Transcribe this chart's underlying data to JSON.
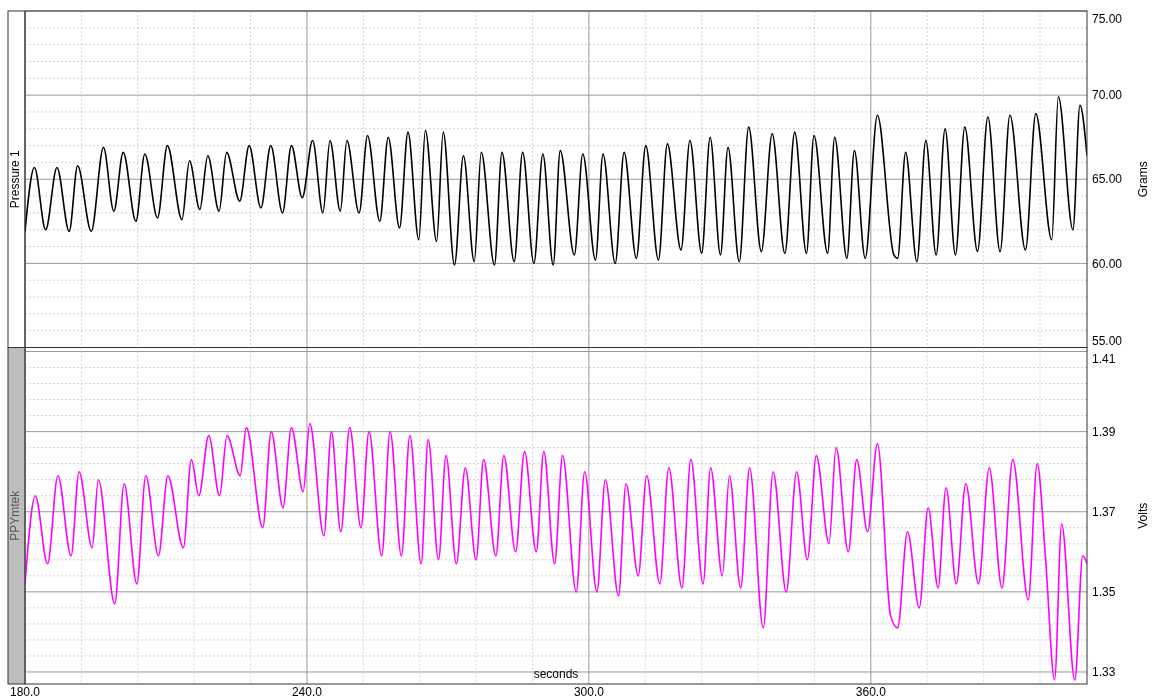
{
  "chart_data": [
    {
      "type": "line",
      "x": [
        180.0,
        182.0,
        184.4,
        186.8,
        189.4,
        191.2,
        194.1,
        196.7,
        198.9,
        200.9,
        203.6,
        205.5,
        208.2,
        210.3,
        213.4,
        215.0,
        217.2,
        218.9,
        221.3,
        222.9,
        225.7,
        227.7,
        230.2,
        232.3,
        234.8,
        236.7,
        239.0,
        241.2,
        243.4,
        244.9,
        247.1,
        248.5,
        251.1,
        252.9,
        255.5,
        257.3,
        259.7,
        261.5,
        263.8,
        265.2,
        267.6,
        269.0,
        271.4,
        273.3,
        275.6,
        277.1,
        279.9,
        281.5,
        284.1,
        285.9,
        288.3,
        290.2,
        292.4,
        293.9,
        296.9,
        298.7,
        301.4,
        303.0,
        305.6,
        307.5,
        310.1,
        312.1,
        314.8,
        316.7,
        319.6,
        321.5,
        324.0,
        325.8,
        328.0,
        329.6,
        332.0,
        334.0,
        336.7,
        339.0,
        341.7,
        343.8,
        346.3,
        347.9,
        350.8,
        352.3,
        354.9,
        356.5,
        358.8,
        361.4,
        364.9,
        365.7,
        367.4,
        369.8,
        371.7,
        373.9,
        375.8,
        378.0,
        380.0,
        382.7,
        384.9,
        387.5,
        389.6,
        392.9,
        395.1,
        398.5,
        399.9,
        403.0,
        404.5,
        406.0
      ],
      "series": [
        {
          "name": "Pressure 1",
          "color": "#000000",
          "values": [
            61.9,
            65.7,
            62.0,
            65.7,
            61.9,
            65.8,
            61.9,
            66.9,
            63.1,
            66.6,
            62.5,
            66.5,
            62.7,
            67.0,
            62.6,
            66.1,
            63.2,
            66.4,
            63.1,
            66.6,
            63.7,
            67.0,
            63.3,
            67.0,
            63.0,
            67.0,
            63.9,
            67.3,
            63.0,
            67.3,
            63.1,
            67.3,
            63.0,
            67.6,
            62.5,
            67.5,
            62.1,
            67.8,
            61.4,
            67.9,
            61.3,
            67.8,
            59.9,
            66.4,
            60.1,
            66.6,
            59.9,
            66.6,
            60.1,
            66.6,
            60.0,
            66.5,
            59.9,
            66.7,
            60.5,
            66.5,
            60.2,
            66.5,
            60.0,
            66.6,
            60.3,
            67.0,
            60.2,
            67.1,
            60.8,
            67.3,
            60.6,
            67.5,
            60.5,
            66.9,
            60.1,
            68.1,
            60.7,
            67.7,
            60.6,
            67.8,
            60.6,
            67.6,
            60.6,
            67.5,
            60.3,
            66.7,
            60.3,
            68.8,
            60.5,
            60.3,
            66.6,
            60.1,
            67.3,
            60.5,
            68.0,
            60.5,
            68.1,
            60.7,
            68.7,
            60.7,
            68.8,
            60.8,
            68.9,
            61.4,
            69.9,
            62.0,
            69.4,
            66.4
          ]
        }
      ],
      "ylabel": "Grams",
      "xlim": [
        180,
        406
      ],
      "xticks": [
        {
          "value": 180,
          "label": null
        },
        {
          "value": 192,
          "label": null
        },
        {
          "value": 204,
          "label": null
        },
        {
          "value": 216,
          "label": null
        },
        {
          "value": 228,
          "label": null
        },
        {
          "value": 240,
          "label": null
        },
        {
          "value": 252,
          "label": null
        },
        {
          "value": 264,
          "label": null
        },
        {
          "value": 276,
          "label": null
        },
        {
          "value": 288,
          "label": null
        },
        {
          "value": 300,
          "label": null
        },
        {
          "value": 312,
          "label": null
        },
        {
          "value": 324,
          "label": null
        },
        {
          "value": 336,
          "label": null
        },
        {
          "value": 348,
          "label": null
        },
        {
          "value": 360,
          "label": null
        },
        {
          "value": 372,
          "label": null
        },
        {
          "value": 384,
          "label": null
        },
        {
          "value": 396,
          "label": null
        }
      ],
      "ylim": [
        55,
        75
      ],
      "yticks": [
        {
          "value": 55,
          "label": "55.00"
        },
        {
          "value": 56,
          "label": null
        },
        {
          "value": 57,
          "label": null
        },
        {
          "value": 58,
          "label": null
        },
        {
          "value": 59,
          "label": null
        },
        {
          "value": 60,
          "label": "60.00"
        },
        {
          "value": 61,
          "label": null
        },
        {
          "value": 62,
          "label": null
        },
        {
          "value": 63,
          "label": null
        },
        {
          "value": 64,
          "label": null
        },
        {
          "value": 65,
          "label": "65.00"
        },
        {
          "value": 66,
          "label": null
        },
        {
          "value": 67,
          "label": null
        },
        {
          "value": 68,
          "label": null
        },
        {
          "value": 69,
          "label": null
        },
        {
          "value": 70,
          "label": "70.00"
        },
        {
          "value": 71,
          "label": null
        },
        {
          "value": 72,
          "label": null
        },
        {
          "value": 73,
          "label": null
        },
        {
          "value": 74,
          "label": null
        },
        {
          "value": 75,
          "label": "75.00"
        }
      ],
      "grid": true,
      "tick_labels": "y",
      "legend": false
    },
    {
      "type": "line",
      "x": [
        180.0,
        182.2,
        184.8,
        187.0,
        189.8,
        191.5,
        194.3,
        195.6,
        199.1,
        201.1,
        203.8,
        205.7,
        208.4,
        210.4,
        213.7,
        215.4,
        217.0,
        219.1,
        221.4,
        223.0,
        225.8,
        227.1,
        230.6,
        232.4,
        234.9,
        236.7,
        239.2,
        240.6,
        243.6,
        245.2,
        247.2,
        249.1,
        251.5,
        253.2,
        255.9,
        257.7,
        260.1,
        261.9,
        264.3,
        265.8,
        268.0,
        269.6,
        271.8,
        273.7,
        276.0,
        277.6,
        280.2,
        281.9,
        284.4,
        286.3,
        288.8,
        290.4,
        292.7,
        294.4,
        297.3,
        299.1,
        301.7,
        303.5,
        306.3,
        307.9,
        310.5,
        312.3,
        315.1,
        317.0,
        319.8,
        321.7,
        324.3,
        325.9,
        328.4,
        329.9,
        332.3,
        334.2,
        337.1,
        339.2,
        342.0,
        344.2,
        346.5,
        348.4,
        351.1,
        352.6,
        355.2,
        357.0,
        359.3,
        361.4,
        364.2,
        365.7,
        367.8,
        370.3,
        372.2,
        374.3,
        376.0,
        378.2,
        380.2,
        382.9,
        385.2,
        387.9,
        390.2,
        393.5,
        395.4,
        397.2,
        399.1,
        400.6,
        403.4,
        405.1,
        406.0
      ],
      "series": [
        {
          "name": "PPYmtek",
          "color": "#ff00ff",
          "values": [
            1.352,
            1.374,
            1.357,
            1.379,
            1.359,
            1.38,
            1.361,
            1.378,
            1.347,
            1.377,
            1.352,
            1.379,
            1.359,
            1.379,
            1.361,
            1.383,
            1.374,
            1.389,
            1.374,
            1.389,
            1.379,
            1.391,
            1.366,
            1.39,
            1.371,
            1.391,
            1.375,
            1.392,
            1.364,
            1.39,
            1.365,
            1.391,
            1.366,
            1.39,
            1.359,
            1.39,
            1.359,
            1.389,
            1.357,
            1.388,
            1.358,
            1.384,
            1.357,
            1.381,
            1.358,
            1.383,
            1.359,
            1.384,
            1.36,
            1.385,
            1.36,
            1.385,
            1.357,
            1.384,
            1.35,
            1.38,
            1.35,
            1.378,
            1.349,
            1.377,
            1.354,
            1.379,
            1.352,
            1.381,
            1.351,
            1.383,
            1.352,
            1.381,
            1.354,
            1.379,
            1.351,
            1.381,
            1.341,
            1.38,
            1.35,
            1.38,
            1.358,
            1.384,
            1.362,
            1.386,
            1.36,
            1.383,
            1.365,
            1.387,
            1.344,
            1.341,
            1.365,
            1.346,
            1.371,
            1.351,
            1.376,
            1.352,
            1.377,
            1.352,
            1.381,
            1.351,
            1.383,
            1.348,
            1.382,
            1.358,
            1.328,
            1.367,
            1.328,
            1.359,
            1.357
          ]
        }
      ],
      "xlabel": "seconds",
      "ylabel": "Volts",
      "xlim": [
        180,
        406
      ],
      "xticks": [
        {
          "value": 180,
          "label": "180.0"
        },
        {
          "value": 192,
          "label": null
        },
        {
          "value": 204,
          "label": null
        },
        {
          "value": 216,
          "label": null
        },
        {
          "value": 228,
          "label": null
        },
        {
          "value": 240,
          "label": "240.0"
        },
        {
          "value": 252,
          "label": null
        },
        {
          "value": 264,
          "label": null
        },
        {
          "value": 276,
          "label": null
        },
        {
          "value": 288,
          "label": null
        },
        {
          "value": 300,
          "label": "300.0"
        },
        {
          "value": 312,
          "label": null
        },
        {
          "value": 324,
          "label": null
        },
        {
          "value": 336,
          "label": null
        },
        {
          "value": 348,
          "label": null
        },
        {
          "value": 360,
          "label": "360.0"
        },
        {
          "value": 372,
          "label": null
        },
        {
          "value": 384,
          "label": null
        },
        {
          "value": 396,
          "label": null
        }
      ],
      "ylim": [
        1.327,
        1.411
      ],
      "yticks": [
        1.33,
        {
          "value": 1.334,
          "label": null
        },
        {
          "value": 1.338,
          "label": null
        },
        {
          "value": 1.342,
          "label": null
        },
        {
          "value": 1.346,
          "label": null
        },
        1.35,
        {
          "value": 1.354,
          "label": null
        },
        {
          "value": 1.358,
          "label": null
        },
        {
          "value": 1.362,
          "label": null
        },
        {
          "value": 1.366,
          "label": null
        },
        1.37,
        {
          "value": 1.374,
          "label": null
        },
        {
          "value": 1.378,
          "label": null
        },
        {
          "value": 1.382,
          "label": null
        },
        {
          "value": 1.386,
          "label": null
        },
        1.39,
        {
          "value": 1.394,
          "label": null
        },
        {
          "value": 1.398,
          "label": null
        },
        {
          "value": 1.402,
          "label": null
        },
        {
          "value": 1.406,
          "label": null
        },
        1.41
      ],
      "grid": true,
      "legend": false
    }
  ]
}
